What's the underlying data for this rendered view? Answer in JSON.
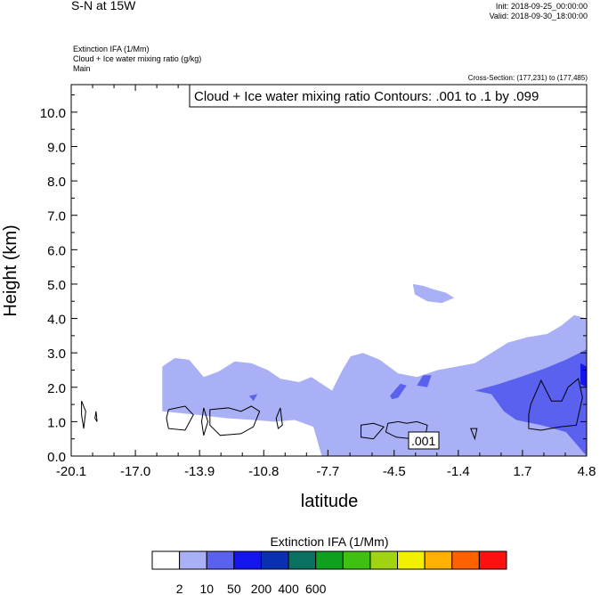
{
  "header": {
    "title": "S-N at 15W",
    "init": "Init: 2018-09-25_00:00:00",
    "valid": "Valid: 2018-09-30_18:00:00",
    "fields": [
      "Extinction IFA   (1/Mm)",
      "Cloud + Ice water mixing ratio   (g/kg)",
      "Main"
    ],
    "cross_section": "Cross-Section: (177,231) to (177,485)"
  },
  "chart_data": {
    "type": "heatmap",
    "contour_label": "Cloud + Ice water mixing ratio Contours: .001 to .1 by .099",
    "inline_contour_label": ".001",
    "xlabel": "latitude",
    "ylabel": "Height (km)",
    "x_ticks": [
      "-20.1",
      "-17.0",
      "-13.9",
      "-10.8",
      "-7.7",
      "-4.5",
      "-1.4",
      "1.7",
      "4.8"
    ],
    "x_tick_values": [
      -20.1,
      -17.0,
      -13.9,
      -10.8,
      -7.7,
      -4.5,
      -1.4,
      1.7,
      4.8
    ],
    "y_ticks": [
      "0.0",
      "1.0",
      "2.0",
      "3.0",
      "4.0",
      "5.0",
      "6.0",
      "7.0",
      "8.0",
      "9.0",
      "10.0"
    ],
    "y_tick_values": [
      0,
      1,
      2,
      3,
      4,
      5,
      6,
      7,
      8,
      9,
      10
    ],
    "xlim": [
      -20.1,
      4.8
    ],
    "ylim": [
      0,
      10.8
    ],
    "shaded_regions": [
      {
        "level": "2-10",
        "color": "#aab0f5",
        "points": [
          [
            -15.7,
            2.6
          ],
          [
            -15.1,
            2.85
          ],
          [
            -14.4,
            2.8
          ],
          [
            -13.7,
            2.3
          ],
          [
            -13.0,
            2.45
          ],
          [
            -12.2,
            2.75
          ],
          [
            -11.4,
            2.7
          ],
          [
            -10.6,
            2.5
          ],
          [
            -10.0,
            2.25
          ],
          [
            -9.1,
            2.15
          ],
          [
            -8.5,
            2.3
          ],
          [
            -8.0,
            2.1
          ],
          [
            -7.5,
            1.9
          ],
          [
            -7.0,
            2.5
          ],
          [
            -6.6,
            2.9
          ],
          [
            -6.0,
            3.0
          ],
          [
            -5.2,
            2.8
          ],
          [
            -4.3,
            2.4
          ],
          [
            -3.4,
            2.3
          ],
          [
            -2.4,
            2.5
          ],
          [
            -1.5,
            2.6
          ],
          [
            -0.6,
            2.7
          ],
          [
            0.2,
            3.0
          ],
          [
            1.0,
            3.3
          ],
          [
            1.9,
            3.45
          ],
          [
            2.9,
            3.55
          ],
          [
            3.6,
            3.8
          ],
          [
            4.2,
            4.1
          ],
          [
            4.8,
            4.0
          ],
          [
            4.8,
            0
          ],
          [
            -8.0,
            0
          ],
          [
            -8.4,
            0.85
          ],
          [
            -9.3,
            1.05
          ],
          [
            -10.3,
            1.0
          ],
          [
            -11.3,
            1.05
          ],
          [
            -12.6,
            1.1
          ],
          [
            -14.0,
            1.2
          ],
          [
            -15.7,
            1.3
          ]
        ]
      },
      {
        "level": "2-10",
        "color": "#aab0f5",
        "points": [
          [
            -3.6,
            5.0
          ],
          [
            -3.1,
            4.95
          ],
          [
            -2.6,
            4.85
          ],
          [
            -2.0,
            4.75
          ],
          [
            -1.6,
            4.6
          ],
          [
            -2.2,
            4.45
          ],
          [
            -2.9,
            4.5
          ],
          [
            -3.5,
            4.7
          ]
        ]
      },
      {
        "level": "10-50",
        "color": "#5a61ee",
        "points": [
          [
            -0.6,
            1.9
          ],
          [
            0.6,
            2.1
          ],
          [
            1.6,
            2.3
          ],
          [
            2.8,
            2.55
          ],
          [
            3.8,
            2.8
          ],
          [
            4.8,
            3.1
          ],
          [
            4.8,
            0
          ],
          [
            3.8,
            0.7
          ],
          [
            2.6,
            0.9
          ],
          [
            1.4,
            1.05
          ],
          [
            0.8,
            1.3
          ],
          [
            0.2,
            1.8
          ]
        ]
      },
      {
        "level": "10-50",
        "color": "#5a61ee",
        "points": [
          [
            -4.7,
            1.75
          ],
          [
            -4.2,
            2.1
          ],
          [
            -3.9,
            2.05
          ],
          [
            -4.3,
            1.7
          ],
          [
            -4.6,
            1.65
          ]
        ]
      },
      {
        "level": "10-50",
        "color": "#5a61ee",
        "points": [
          [
            -3.4,
            2.05
          ],
          [
            -3.1,
            2.35
          ],
          [
            -2.7,
            2.35
          ],
          [
            -2.9,
            2.0
          ]
        ]
      },
      {
        "level": "10-50",
        "color": "#5a61ee",
        "points": [
          [
            -11.5,
            1.75
          ],
          [
            -11.1,
            1.8
          ],
          [
            -11.3,
            1.6
          ]
        ]
      },
      {
        "level": "50-100",
        "color": "#1414ee",
        "points": [
          [
            4.5,
            2.7
          ],
          [
            4.8,
            2.6
          ],
          [
            4.8,
            2.0
          ],
          [
            4.5,
            2.1
          ]
        ]
      }
    ],
    "contours": [
      {
        "level": 0.001,
        "points": [
          [
            -19.6,
            1.6
          ],
          [
            -19.4,
            1.3
          ],
          [
            -19.5,
            0.8
          ],
          [
            -19.6,
            1.2
          ]
        ]
      },
      {
        "level": 0.001,
        "points": [
          [
            -18.9,
            1.3
          ],
          [
            -18.85,
            1.0
          ],
          [
            -18.95,
            1.1
          ]
        ]
      },
      {
        "level": 0.001,
        "points": [
          [
            -15.4,
            1.35
          ],
          [
            -14.6,
            1.45
          ],
          [
            -14.2,
            1.2
          ],
          [
            -14.6,
            0.75
          ],
          [
            -15.4,
            0.8
          ],
          [
            -15.5,
            1.1
          ]
        ]
      },
      {
        "level": 0.001,
        "points": [
          [
            -13.7,
            1.4
          ],
          [
            -13.5,
            1.0
          ],
          [
            -13.7,
            0.6
          ],
          [
            -13.8,
            1.0
          ]
        ]
      },
      {
        "level": 0.001,
        "points": [
          [
            -13.4,
            1.35
          ],
          [
            -12.5,
            1.4
          ],
          [
            -11.9,
            1.3
          ],
          [
            -11.4,
            1.45
          ],
          [
            -11.0,
            1.3
          ],
          [
            -11.3,
            0.85
          ],
          [
            -11.9,
            0.65
          ],
          [
            -12.9,
            0.6
          ],
          [
            -13.4,
            0.9
          ]
        ]
      },
      {
        "level": 0.001,
        "points": [
          [
            -10.0,
            1.4
          ],
          [
            -9.9,
            0.9
          ],
          [
            -10.1,
            0.8
          ],
          [
            -10.2,
            1.1
          ]
        ]
      },
      {
        "level": 0.001,
        "points": [
          [
            -6.1,
            0.9
          ],
          [
            -5.5,
            0.95
          ],
          [
            -5.0,
            0.85
          ],
          [
            -5.5,
            0.5
          ],
          [
            -6.1,
            0.55
          ]
        ]
      },
      {
        "level": 0.001,
        "points": [
          [
            -4.8,
            0.95
          ],
          [
            -4.3,
            1.0
          ],
          [
            -3.9,
            0.95
          ],
          [
            -3.4,
            1.0
          ],
          [
            -2.9,
            0.9
          ],
          [
            -3.0,
            0.55
          ],
          [
            -3.6,
            0.5
          ],
          [
            -4.4,
            0.55
          ],
          [
            -4.9,
            0.7
          ]
        ]
      },
      {
        "level": 0.001,
        "points": [
          [
            -0.8,
            0.8
          ],
          [
            -0.5,
            0.8
          ],
          [
            -0.6,
            0.5
          ]
        ]
      },
      {
        "level": 0.001,
        "points": [
          [
            2.1,
            1.5
          ],
          [
            2.6,
            2.2
          ],
          [
            3.1,
            1.6
          ],
          [
            3.6,
            1.6
          ],
          [
            3.9,
            2.0
          ],
          [
            4.4,
            2.25
          ],
          [
            4.6,
            1.7
          ],
          [
            4.3,
            0.9
          ],
          [
            3.5,
            0.85
          ],
          [
            2.6,
            0.75
          ],
          [
            2.0,
            0.8
          ],
          [
            2.0,
            1.2
          ]
        ]
      }
    ]
  },
  "colorbar": {
    "title": "Extinction IFA  (1/Mm)",
    "labels": [
      "2",
      "10",
      "50",
      "200",
      "400",
      "600"
    ],
    "colors": [
      "#ffffff",
      "#aab0f5",
      "#5a61ee",
      "#1414ee",
      "#0a2fb0",
      "#0a7060",
      "#10a020",
      "#40c010",
      "#a0d410",
      "#f0f000",
      "#ffb000",
      "#ff6000",
      "#ff1010"
    ]
  }
}
